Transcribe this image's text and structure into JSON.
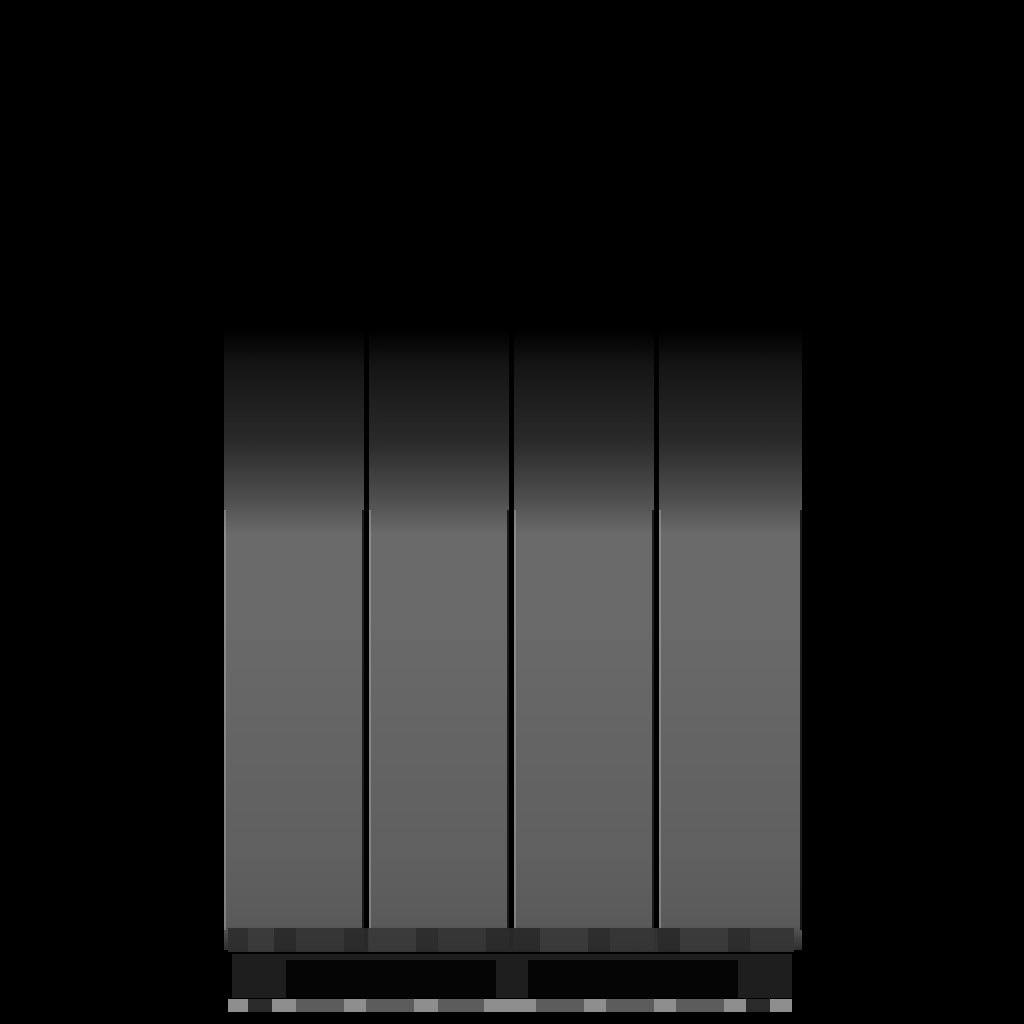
{
  "scene": {
    "background_color": "#000000",
    "panel_count": 4,
    "panel_gradient_colors": [
      "#000000",
      "#2a2a2a",
      "#6a6a6a",
      "#5a5a5a"
    ],
    "base_strip_color": "#1e1e1e",
    "rail_colors": [
      "#8e8e8e",
      "#5c5c5c",
      "#2a2a2a"
    ]
  }
}
